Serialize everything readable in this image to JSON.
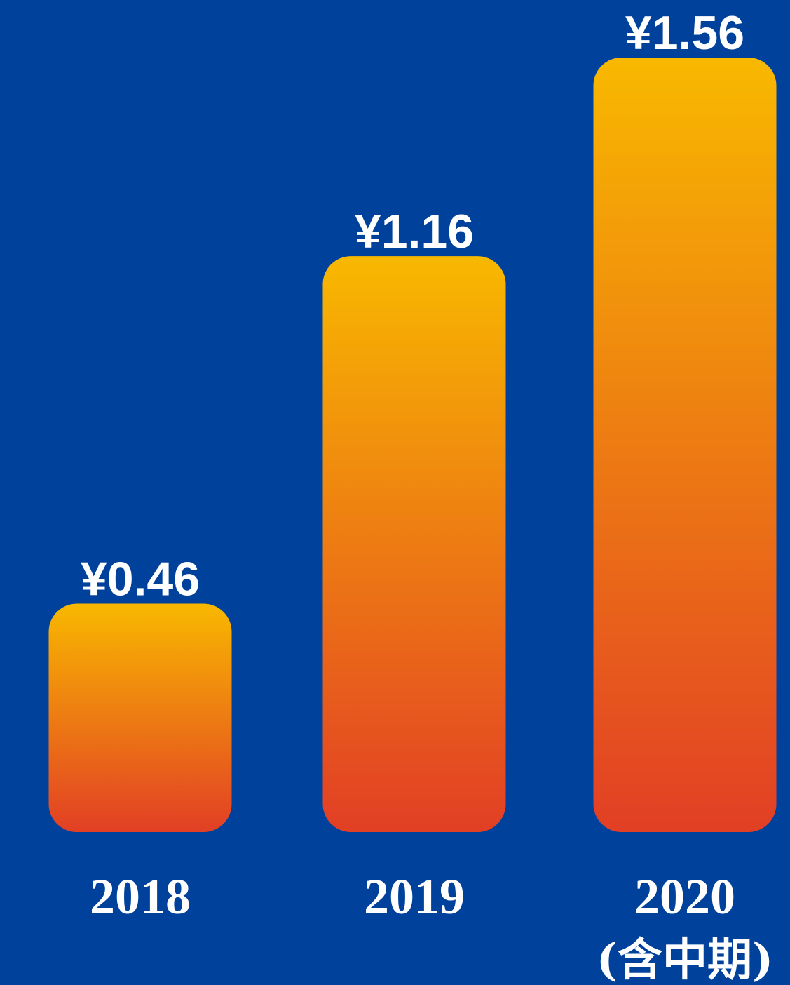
{
  "chart_data": {
    "type": "bar",
    "categories": [
      "2018",
      "2019",
      "2020"
    ],
    "category_sublabels": [
      "",
      "",
      "(含中期)"
    ],
    "values": [
      0.46,
      1.16,
      1.56
    ],
    "value_labels": [
      "¥0.46",
      "¥1.16",
      "¥1.56"
    ],
    "title": "",
    "xlabel": "",
    "ylabel": "",
    "ylim": [
      0,
      1.56
    ],
    "grid": false,
    "legend": "none"
  },
  "colors": {
    "background": "#00419c",
    "bar_top": "#f8b800",
    "bar_bottom": "#e23f25",
    "text": "#ffffff"
  }
}
